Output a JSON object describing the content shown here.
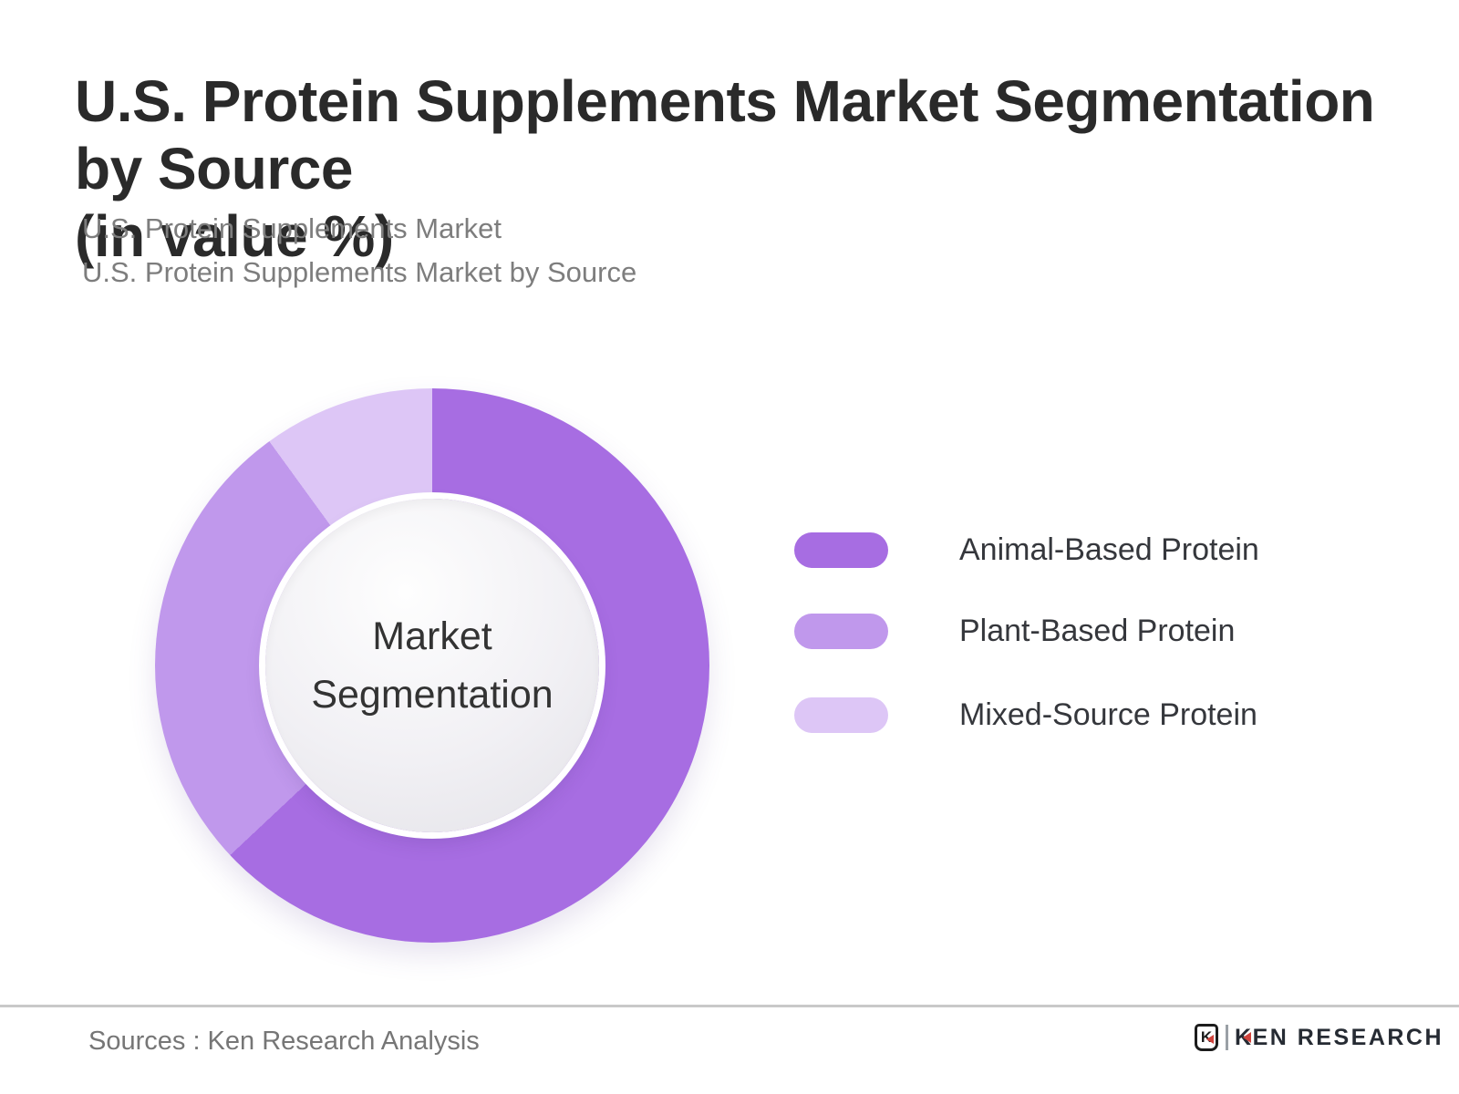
{
  "title": {
    "line1": "U.S. Protein Supplements Market Segmentation by Source",
    "line2": "(in value %)"
  },
  "subtitles": {
    "line1": "U.S. Protein Supplements Market",
    "line2": "U.S. Protein Supplements Market by Source"
  },
  "donut_center": {
    "line1": "Market",
    "line2": "Segmentation"
  },
  "legend": {
    "items": [
      {
        "label": "Animal-Based Protein",
        "color": "#a76de2"
      },
      {
        "label": "Plant-Based Protein",
        "color": "#c098ec"
      },
      {
        "label": "Mixed-Source Protein",
        "color": "#ddc6f6"
      }
    ]
  },
  "chart_data": {
    "type": "pie",
    "subtype": "donut",
    "title": "U.S. Protein Supplements Market Segmentation by Source (in value %)",
    "categories": [
      "Animal-Based Protein",
      "Plant-Based Protein",
      "Mixed-Source Protein"
    ],
    "values": [
      63,
      27,
      10
    ],
    "unit": "value %",
    "values_estimated_from_arc_angles": true,
    "colors": [
      "#a76de2",
      "#c098ec",
      "#ddc6f6"
    ],
    "center_label": "Market Segmentation",
    "start_angle_deg": 0,
    "direction": "clockwise",
    "legend_position": "right",
    "data_labels_shown": false
  },
  "footer": {
    "sources": "Sources : Ken Research Analysis",
    "logo": {
      "shield_letter": "K",
      "brand": "KEN RESEARCH",
      "accent_color": "#d0433c",
      "text_color": "#262b33"
    }
  }
}
